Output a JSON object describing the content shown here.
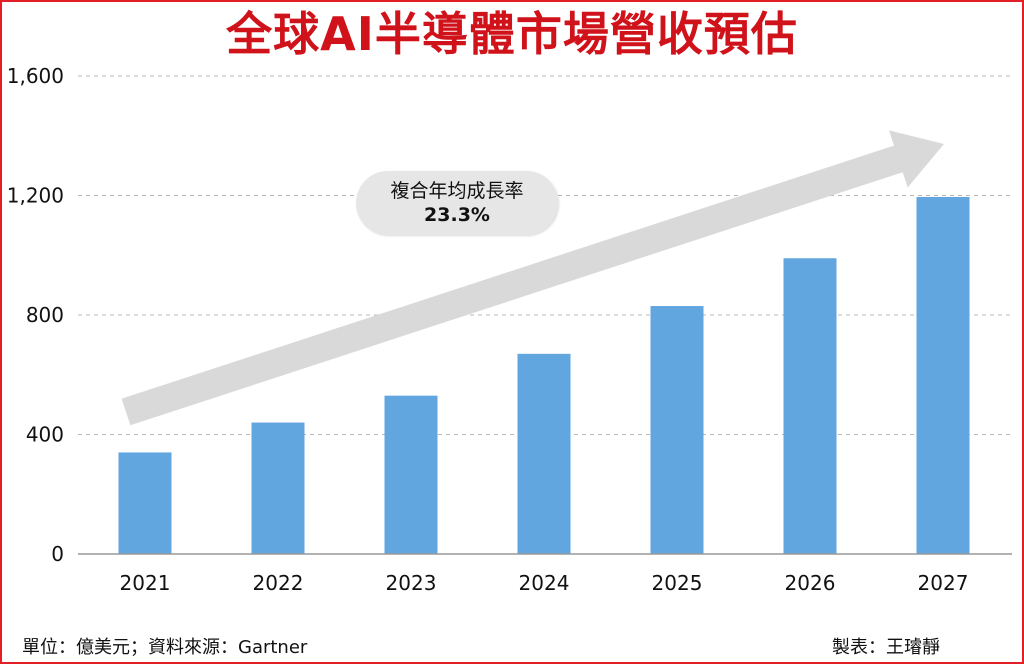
{
  "title": "全球AI半導體市場營收預估",
  "annotation": {
    "line1": "複合年均成長率",
    "line2": "23.3%"
  },
  "footer": {
    "left": "單位：億美元；資料來源：Gartner",
    "right": "製表：王璿靜"
  },
  "colors": {
    "bar": "#62a6e0",
    "title": "#d0121b",
    "arrow": "#d9d9d9",
    "grid": "#b8b8b8",
    "frame": "#e31e24"
  },
  "chart_data": {
    "type": "bar",
    "categories": [
      "2021",
      "2022",
      "2023",
      "2024",
      "2025",
      "2026",
      "2027"
    ],
    "values": [
      340,
      440,
      530,
      670,
      830,
      990,
      1195
    ],
    "yticks": [
      "0",
      "400",
      "800",
      "1,200",
      "1,600"
    ],
    "ylim": [
      0,
      1600
    ],
    "grid": true,
    "legend": "none"
  }
}
